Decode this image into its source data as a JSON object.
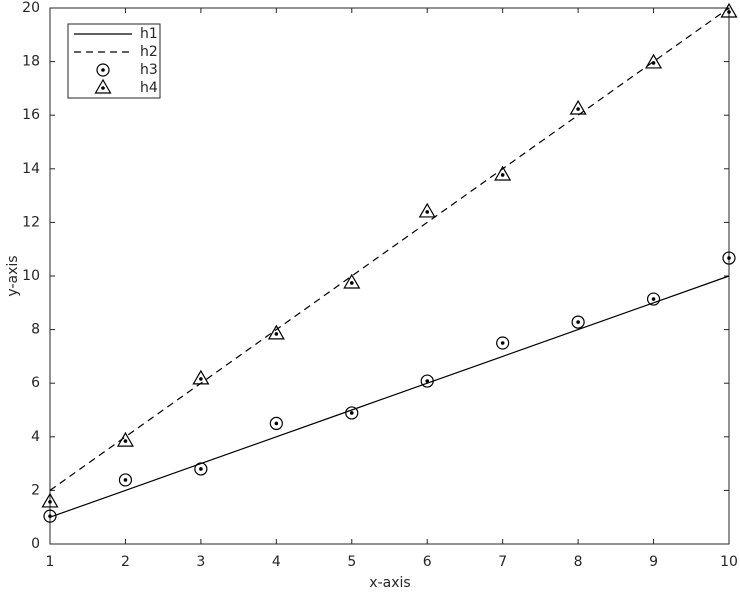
{
  "chart_data": {
    "type": "line",
    "xlabel": "x-axis",
    "ylabel": "y-axis",
    "x": [
      1,
      2,
      3,
      4,
      5,
      6,
      7,
      8,
      9,
      10
    ],
    "series": [
      {
        "name": "h1",
        "color": "#000000",
        "line_style": "solid",
        "marker": "none",
        "values": [
          1,
          2,
          3,
          4,
          5,
          6,
          7,
          8,
          9,
          10
        ]
      },
      {
        "name": "h2",
        "color": "#000000",
        "line_style": "dashed",
        "marker": "none",
        "values": [
          2,
          4,
          6,
          8,
          10,
          12,
          14,
          16,
          18,
          20
        ]
      },
      {
        "name": "h3",
        "color": "#000000",
        "line_style": "none",
        "marker": "circle",
        "values": [
          1.04,
          2.39,
          2.8,
          4.5,
          4.89,
          6.08,
          7.5,
          8.28,
          9.14,
          10.67
        ]
      },
      {
        "name": "h4",
        "color": "#000000",
        "line_style": "none",
        "marker": "triangle",
        "values": [
          1.57,
          3.84,
          6.16,
          7.84,
          9.74,
          12.39,
          13.77,
          16.23,
          17.95,
          19.85
        ]
      }
    ],
    "xlim": [
      1,
      10
    ],
    "ylim": [
      0,
      20
    ],
    "xticks": [
      1,
      2,
      3,
      4,
      5,
      6,
      7,
      8,
      9,
      10
    ],
    "yticks": [
      0,
      2,
      4,
      6,
      8,
      10,
      12,
      14,
      16,
      18,
      20
    ],
    "legend": "upper left"
  }
}
